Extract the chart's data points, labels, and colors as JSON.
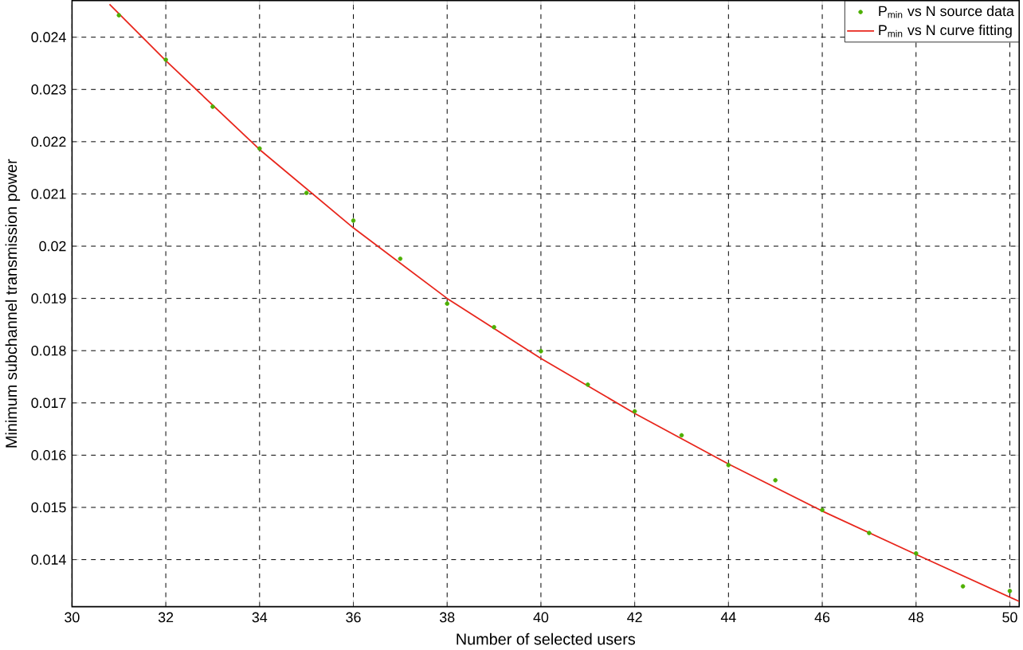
{
  "chart_data": {
    "type": "scatter",
    "xlabel": "Number of selected users",
    "ylabel": "Minimum subchannel transmission power",
    "xlim": [
      30,
      50.2
    ],
    "ylim": [
      0.0131,
      0.0247
    ],
    "xticks": [
      30,
      32,
      34,
      36,
      38,
      40,
      42,
      44,
      46,
      48,
      50
    ],
    "yticks": [
      0.014,
      0.015,
      0.016,
      0.017,
      0.018,
      0.019,
      0.02,
      0.021,
      0.022,
      0.023,
      0.024
    ],
    "grid": true,
    "legend": "top right",
    "marker": "circle",
    "series": [
      {
        "name": "P$_{min}$ vs N source data",
        "color": "#4daf00",
        "x": [
          31,
          32,
          33,
          34,
          35,
          36,
          37,
          38,
          39,
          40,
          41,
          42,
          43,
          44,
          45,
          46,
          47,
          48,
          49,
          50
        ],
        "values": [
          0.02442,
          0.02357,
          0.02267,
          0.02187,
          0.02102,
          0.02049,
          0.01976,
          0.0189,
          0.01845,
          0.01799,
          0.01735,
          0.01684,
          0.01638,
          0.01581,
          0.01552,
          0.01495,
          0.01451,
          0.01412,
          0.01349,
          0.0134
        ]
      },
      {
        "name": "P$_{min}$ vs N curve fitting",
        "type": "line",
        "marker": "none",
        "color": "#e8261c",
        "x": [
          30.8,
          32,
          34,
          36,
          38,
          40,
          42,
          44,
          46,
          48,
          50.2
        ],
        "values": [
          0.02463,
          0.02355,
          0.02185,
          0.02035,
          0.019,
          0.01785,
          0.0168,
          0.01583,
          0.01493,
          0.0141,
          0.0132
        ]
      }
    ]
  }
}
